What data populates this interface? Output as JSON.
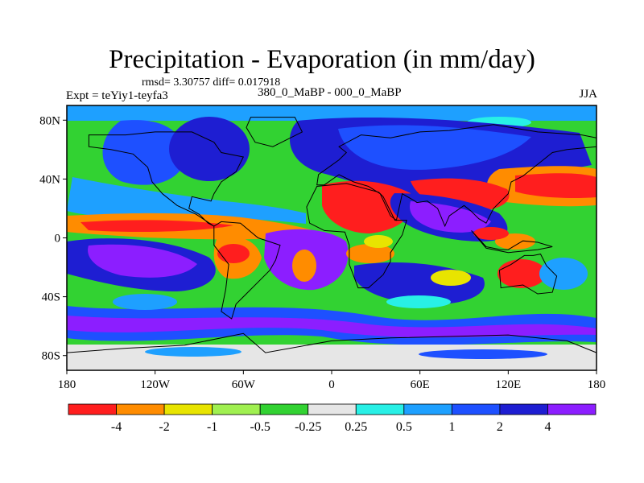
{
  "title": "Precipitation - Evaporation (in mm/day)",
  "stats_line": "rmsd= 3.30757 diff= 0.017918",
  "experiment": "Expt = teYiy1-teyfa3",
  "period": "380_0_MaBP - 000_0_MaBP",
  "season": "JJA",
  "map": {
    "lon_range": [
      -180,
      180
    ],
    "lat_range": [
      -90,
      90
    ],
    "x_ticks": [
      {
        "lon": -180,
        "label": "180"
      },
      {
        "lon": -120,
        "label": "120W"
      },
      {
        "lon": -60,
        "label": "60W"
      },
      {
        "lon": 0,
        "label": "0"
      },
      {
        "lon": 60,
        "label": "60E"
      },
      {
        "lon": 120,
        "label": "120E"
      },
      {
        "lon": 180,
        "label": "180"
      }
    ],
    "y_ticks": [
      {
        "lat": 80,
        "label": "80N"
      },
      {
        "lat": 40,
        "label": "40N"
      },
      {
        "lat": 0,
        "label": "0"
      },
      {
        "lat": -40,
        "label": "40S"
      },
      {
        "lat": -80,
        "label": "80S"
      }
    ]
  },
  "colorbar": {
    "colors": [
      "#ff1e1e",
      "#ff8c00",
      "#e8e400",
      "#a0f050",
      "#32d232",
      "#e6e6e6",
      "#28f0e6",
      "#1ea0ff",
      "#1e50ff",
      "#1e1ed2",
      "#8c1eff"
    ],
    "labels": [
      "-4",
      "-2",
      "-1",
      "-0.5",
      "-0.25",
      "0.25",
      "0.5",
      "1",
      "2",
      "4"
    ]
  }
}
